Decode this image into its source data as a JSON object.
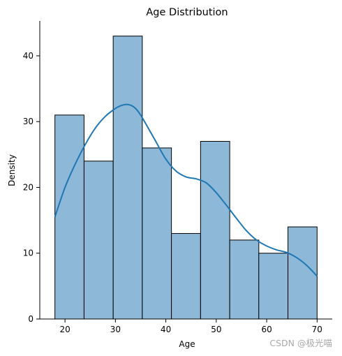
{
  "chart_data": {
    "type": "bar",
    "title": "Age Distribution",
    "xlabel": "Age",
    "ylabel": "Density",
    "bin_edges": [
      18,
      23.78,
      29.56,
      35.33,
      41.11,
      46.89,
      52.67,
      58.44,
      64.22,
      70
    ],
    "values": [
      31,
      24,
      43,
      26,
      13,
      27,
      12,
      10,
      14
    ],
    "kde": {
      "x": [
        18,
        20,
        22,
        24,
        26,
        28,
        30,
        31,
        32,
        33,
        34,
        35,
        36,
        38,
        40,
        42,
        44,
        46,
        48,
        50,
        52,
        54,
        56,
        58,
        60,
        62,
        64,
        66,
        68,
        70
      ],
      "y": [
        15.5,
        20,
        23.5,
        26.5,
        29,
        30.8,
        32,
        32.4,
        32.6,
        32.5,
        32,
        31,
        29.7,
        27,
        24.3,
        22.5,
        21.6,
        21.3,
        20.7,
        19.2,
        17.3,
        15.3,
        13.4,
        12,
        11.1,
        10.5,
        10.1,
        9.3,
        8.1,
        6.5
      ]
    },
    "xlim": [
      15,
      73
    ],
    "ylim": [
      0,
      45.3
    ],
    "xticks": [
      20,
      30,
      40,
      50,
      60,
      70
    ],
    "yticks": [
      0,
      10,
      20,
      30,
      40
    ],
    "bar_color": "#8db8d8",
    "bar_edge_color": "#000000",
    "line_color": "#1f77b4",
    "grid": false,
    "legend": "none"
  },
  "watermark": "CSDN @极光喵"
}
